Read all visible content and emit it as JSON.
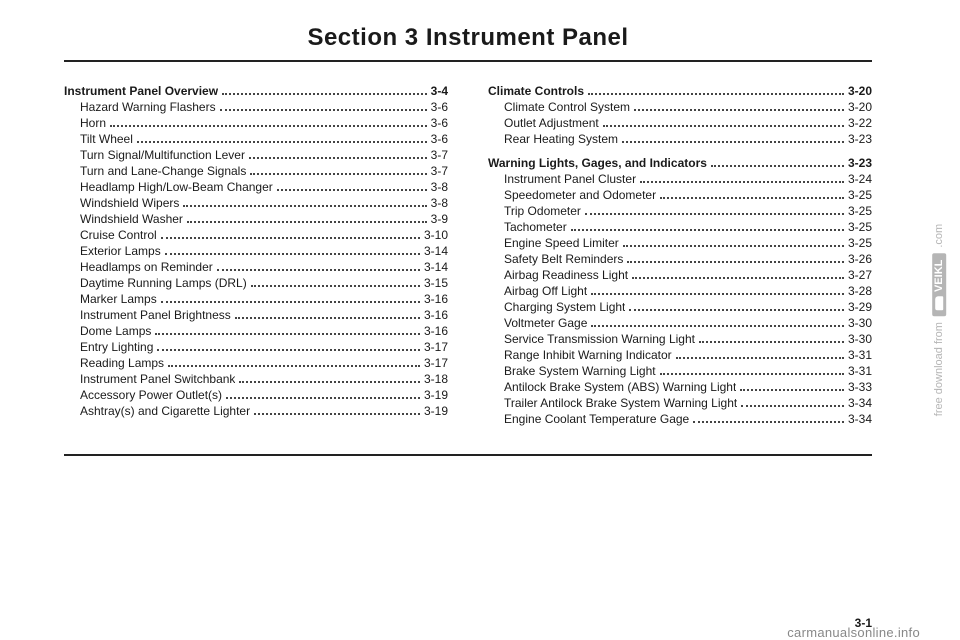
{
  "title": "Section 3    Instrument Panel",
  "page_number": "3-1",
  "footer_site": "carmanualsonline.info",
  "watermark": {
    "text": "free download from",
    "badge": "VEIKL",
    "suffix": ".com"
  },
  "left_sections": [
    {
      "heading": {
        "label": "Instrument Panel Overview",
        "page": "3-4"
      },
      "entries": [
        {
          "label": "Hazard Warning Flashers",
          "page": "3-6"
        },
        {
          "label": "Horn",
          "page": "3-6"
        },
        {
          "label": "Tilt Wheel",
          "page": "3-6"
        },
        {
          "label": "Turn Signal/Multifunction Lever",
          "page": "3-7"
        },
        {
          "label": "Turn and Lane-Change Signals",
          "page": "3-7"
        },
        {
          "label": "Headlamp High/Low-Beam Changer",
          "page": "3-8"
        },
        {
          "label": "Windshield Wipers",
          "page": "3-8"
        },
        {
          "label": "Windshield Washer",
          "page": "3-9"
        },
        {
          "label": "Cruise Control",
          "page": "3-10"
        },
        {
          "label": "Exterior Lamps",
          "page": "3-14"
        },
        {
          "label": "Headlamps on Reminder",
          "page": "3-14"
        },
        {
          "label": "Daytime Running Lamps (DRL)",
          "page": "3-15"
        },
        {
          "label": "Marker Lamps",
          "page": "3-16"
        },
        {
          "label": "Instrument Panel Brightness",
          "page": "3-16"
        },
        {
          "label": "Dome Lamps",
          "page": "3-16"
        },
        {
          "label": "Entry Lighting",
          "page": "3-17"
        },
        {
          "label": "Reading Lamps",
          "page": "3-17"
        },
        {
          "label": "Instrument Panel Switchbank",
          "page": "3-18"
        },
        {
          "label": "Accessory Power Outlet(s)",
          "page": "3-19"
        },
        {
          "label": "Ashtray(s) and Cigarette Lighter",
          "page": "3-19"
        }
      ]
    }
  ],
  "right_sections": [
    {
      "heading": {
        "label": "Climate Controls",
        "page": "3-20"
      },
      "entries": [
        {
          "label": "Climate Control System",
          "page": "3-20"
        },
        {
          "label": "Outlet Adjustment",
          "page": "3-22"
        },
        {
          "label": "Rear Heating System",
          "page": "3-23"
        }
      ]
    },
    {
      "heading": {
        "label": "Warning Lights, Gages, and Indicators",
        "page": "3-23"
      },
      "entries": [
        {
          "label": "Instrument Panel Cluster",
          "page": "3-24"
        },
        {
          "label": "Speedometer and Odometer",
          "page": "3-25"
        },
        {
          "label": "Trip Odometer",
          "page": "3-25"
        },
        {
          "label": "Tachometer",
          "page": "3-25"
        },
        {
          "label": "Engine Speed Limiter",
          "page": "3-25"
        },
        {
          "label": "Safety Belt Reminders",
          "page": "3-26"
        },
        {
          "label": "Airbag Readiness Light",
          "page": "3-27"
        },
        {
          "label": "Airbag Off Light",
          "page": "3-28"
        },
        {
          "label": "Charging System Light",
          "page": "3-29"
        },
        {
          "label": "Voltmeter Gage",
          "page": "3-30"
        },
        {
          "label": "Service Transmission Warning Light",
          "page": "3-30"
        },
        {
          "label": "Range Inhibit Warning Indicator",
          "page": "3-31"
        },
        {
          "label": "Brake System Warning Light",
          "page": "3-31"
        },
        {
          "label": "Antilock Brake System (ABS) Warning Light",
          "page": "3-33"
        },
        {
          "label": "Trailer Antilock Brake System Warning Light",
          "page": "3-34"
        },
        {
          "label": "Engine Coolant Temperature Gage",
          "page": "3-34"
        }
      ]
    }
  ]
}
